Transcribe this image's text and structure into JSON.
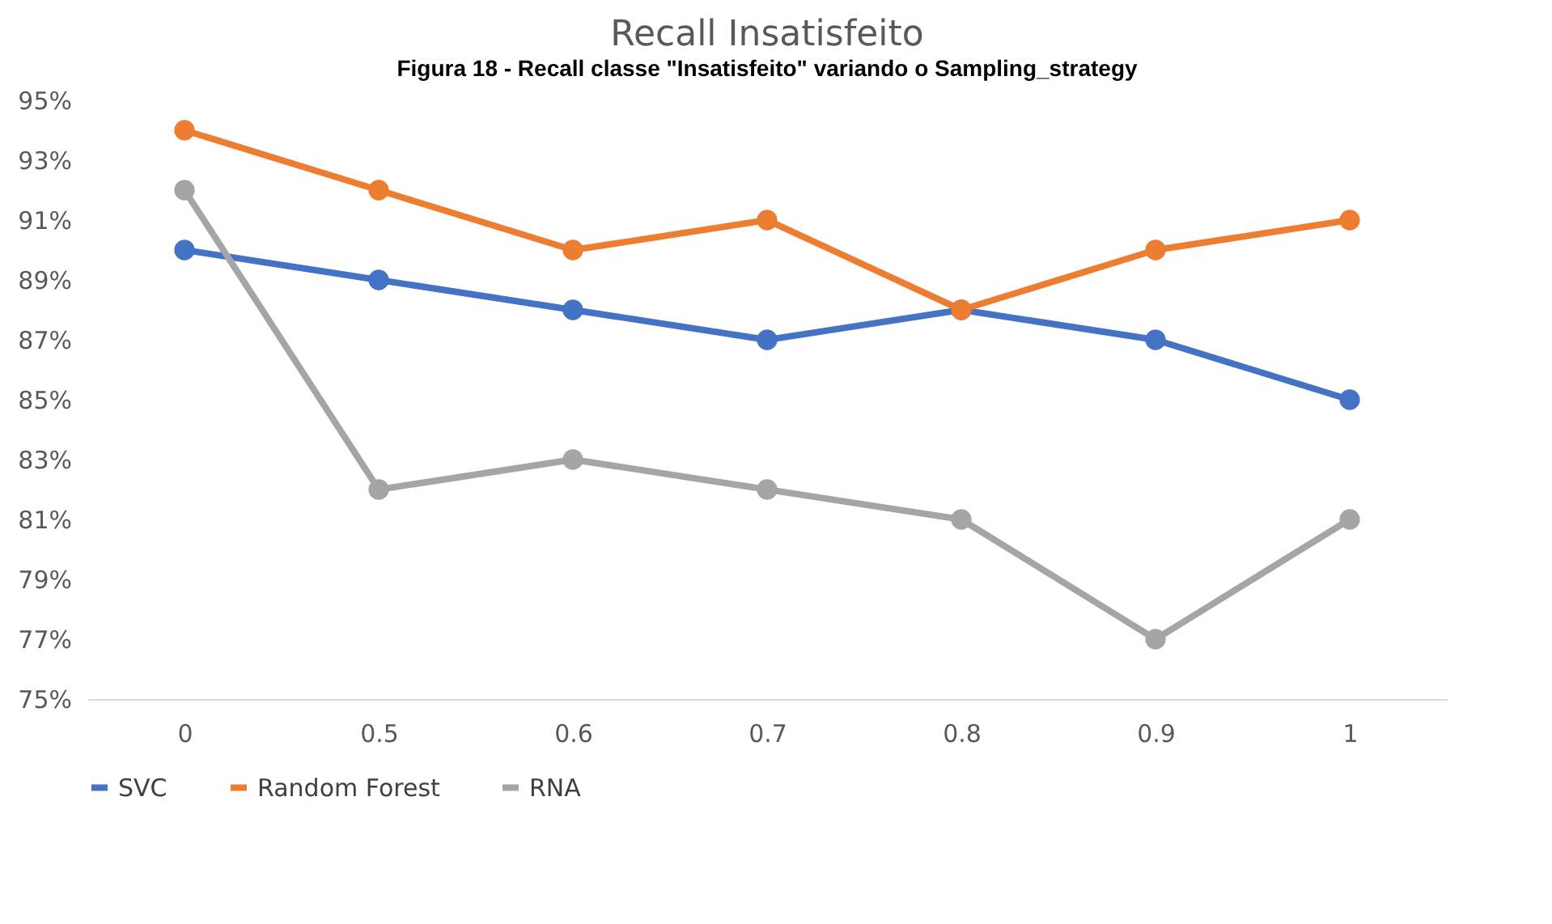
{
  "chart_data": {
    "type": "line",
    "title": "Recall Insatisfeito",
    "annotations": [
      "Figura 18 - Recall classe \"Insatisfeito\" variando o Sampling_strategy"
    ],
    "categories": [
      "0",
      "0.5",
      "0.6",
      "0.7",
      "0.8",
      "0.9",
      "1"
    ],
    "series": [
      {
        "name": "SVC",
        "color": "#4472c4",
        "values": [
          90,
          89,
          88,
          87,
          88,
          87,
          85
        ]
      },
      {
        "name": "Random Forest",
        "color": "#ed7d31",
        "values": [
          94,
          92,
          90,
          91,
          88,
          90,
          91
        ]
      },
      {
        "name": "RNA",
        "color": "#a5a5a5",
        "values": [
          92,
          82,
          83,
          82,
          81,
          77,
          81
        ]
      }
    ],
    "ylim": [
      75,
      95
    ],
    "yticks": [
      {
        "value": 75,
        "label": "75%"
      },
      {
        "value": 77,
        "label": "77%"
      },
      {
        "value": 79,
        "label": "79%"
      },
      {
        "value": 81,
        "label": "81%"
      },
      {
        "value": 83,
        "label": "83%"
      },
      {
        "value": 85,
        "label": "85%"
      },
      {
        "value": 87,
        "label": "87%"
      },
      {
        "value": 89,
        "label": "89%"
      },
      {
        "value": 91,
        "label": "91%"
      },
      {
        "value": 93,
        "label": "93%"
      },
      {
        "value": 95,
        "label": "95%"
      }
    ],
    "grid": false,
    "legend": "bottom",
    "marker": "circle",
    "line_style": "solid"
  }
}
